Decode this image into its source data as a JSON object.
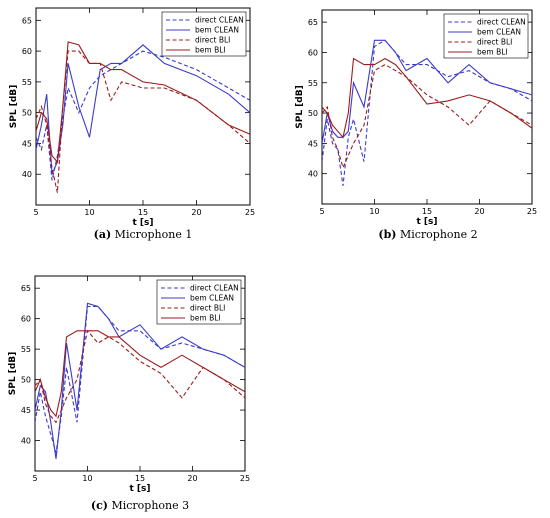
{
  "colors": {
    "blue": "#3b3bcc",
    "red": "#9b1c1c"
  },
  "chart_data": [
    {
      "type": "line",
      "caption_letter": "(a)",
      "caption_text": " Microphone 1",
      "xlabel": "t [s]",
      "ylabel": "SPL [dB]",
      "xlim": [
        5,
        25
      ],
      "ylim": [
        35,
        67
      ],
      "xticks": [
        5,
        10,
        15,
        20,
        25
      ],
      "yticks": [
        40,
        45,
        50,
        55,
        60,
        65
      ],
      "legend": "top-right",
      "series": [
        {
          "name": "direct CLEAN",
          "color": "#3b3bcc",
          "dash": true,
          "x": [
            5,
            5.5,
            6,
            6.5,
            7,
            7.5,
            8,
            9,
            10,
            11,
            12,
            13,
            15,
            17,
            20,
            23,
            25
          ],
          "y": [
            46,
            44,
            48,
            39,
            43,
            49,
            54,
            50,
            54,
            56,
            57,
            58,
            60,
            59,
            57,
            54,
            52
          ]
        },
        {
          "name": "bem CLEAN",
          "color": "#3b3bcc",
          "dash": false,
          "x": [
            5,
            5.5,
            6,
            6.5,
            7,
            7.5,
            8,
            9,
            10,
            11,
            12,
            13,
            15,
            17,
            20,
            23,
            25
          ],
          "y": [
            44,
            48,
            53,
            40,
            42,
            48,
            58,
            51,
            46,
            57,
            58,
            58,
            61,
            58,
            56,
            53,
            50
          ]
        },
        {
          "name": "direct BLI",
          "color": "#9b1c1c",
          "dash": true,
          "x": [
            5,
            5.5,
            6,
            6.5,
            7,
            7.5,
            8,
            9,
            10,
            11,
            12,
            13,
            15,
            17,
            20,
            23,
            25
          ],
          "y": [
            49,
            51,
            48,
            41,
            37,
            51,
            60,
            60,
            58,
            58,
            52,
            55,
            54,
            54,
            52,
            48,
            45
          ]
        },
        {
          "name": "bem BLI",
          "color": "#9b1c1c",
          "dash": false,
          "x": [
            5,
            5.5,
            6,
            6.5,
            7,
            7.5,
            8,
            9,
            10,
            11,
            12,
            13,
            15,
            17,
            20,
            23,
            25
          ],
          "y": [
            47,
            50,
            49,
            43,
            42,
            51,
            61.5,
            61,
            58,
            58,
            57,
            57,
            55,
            54.5,
            52,
            48,
            46.5
          ]
        }
      ]
    },
    {
      "type": "line",
      "caption_letter": "(b)",
      "caption_text": " Microphone 2",
      "xlabel": "t [s]",
      "ylabel": "SPL [dB]",
      "xlim": [
        5,
        25
      ],
      "ylim": [
        35,
        67
      ],
      "xticks": [
        5,
        10,
        15,
        20,
        25
      ],
      "yticks": [
        40,
        45,
        50,
        55,
        60,
        65
      ],
      "legend": "top-right",
      "series": [
        {
          "name": "direct CLEAN",
          "color": "#3b3bcc",
          "dash": true,
          "x": [
            5,
            5.5,
            6,
            6.5,
            7,
            7.5,
            8,
            9,
            10,
            11,
            12,
            13,
            15,
            17,
            19,
            21,
            23,
            25
          ],
          "y": [
            42,
            49,
            45,
            44,
            38,
            46,
            49,
            42,
            61,
            62,
            60,
            58,
            58,
            56,
            57,
            55,
            54,
            52
          ]
        },
        {
          "name": "bem CLEAN",
          "color": "#3b3bcc",
          "dash": false,
          "x": [
            5,
            5.5,
            6,
            6.5,
            7,
            7.5,
            8,
            9,
            10,
            11,
            12,
            13,
            15,
            17,
            19,
            21,
            23,
            25
          ],
          "y": [
            45,
            50,
            47,
            46,
            46,
            47,
            55,
            51,
            62,
            62,
            60,
            57,
            59,
            55,
            58,
            55,
            54,
            53
          ]
        },
        {
          "name": "direct BLI",
          "color": "#9b1c1c",
          "dash": true,
          "x": [
            5,
            5.5,
            6,
            6.5,
            7,
            7.5,
            8,
            9,
            10,
            11,
            12,
            13,
            15,
            17,
            19,
            21,
            23,
            25
          ],
          "y": [
            50,
            51,
            46,
            44,
            41,
            43,
            45,
            48,
            57,
            58,
            57,
            56,
            53,
            51,
            48,
            52,
            50,
            48
          ]
        },
        {
          "name": "bem BLI",
          "color": "#9b1c1c",
          "dash": false,
          "x": [
            5,
            5.5,
            6,
            6.5,
            7,
            7.5,
            8,
            9,
            10,
            11,
            12,
            13,
            15,
            17,
            19,
            21,
            23,
            25
          ],
          "y": [
            51,
            50,
            48,
            47,
            46,
            50,
            59,
            58,
            58,
            59,
            58,
            56,
            51.5,
            52,
            53,
            52,
            50,
            47.5
          ]
        }
      ]
    },
    {
      "type": "line",
      "caption_letter": "(c)",
      "caption_text": " Microphone 3",
      "xlabel": "t [s]",
      "ylabel": "SPL [dB]",
      "xlim": [
        5,
        25
      ],
      "ylim": [
        35,
        67
      ],
      "xticks": [
        5,
        10,
        15,
        20,
        25
      ],
      "yticks": [
        40,
        45,
        50,
        55,
        60,
        65
      ],
      "legend": "top-right",
      "series": [
        {
          "name": "direct CLEAN",
          "color": "#3b3bcc",
          "dash": true,
          "x": [
            5,
            5.5,
            6,
            6.5,
            7,
            7.5,
            8,
            9,
            10,
            11,
            12,
            13,
            15,
            17,
            19,
            21,
            23,
            25
          ],
          "y": [
            43,
            48,
            44,
            41,
            38,
            44,
            52,
            43,
            62,
            62,
            60,
            58,
            58,
            55,
            56,
            55,
            54,
            52
          ]
        },
        {
          "name": "bem CLEAN",
          "color": "#3b3bcc",
          "dash": false,
          "x": [
            5,
            5.5,
            6,
            6.5,
            7,
            7.5,
            8,
            9,
            10,
            11,
            12,
            13,
            15,
            17,
            19,
            21,
            23,
            25
          ],
          "y": [
            45,
            49,
            48,
            43,
            37,
            45,
            56,
            45,
            62.5,
            62,
            60,
            57,
            59,
            55,
            57,
            55,
            54,
            52
          ]
        },
        {
          "name": "direct BLI",
          "color": "#9b1c1c",
          "dash": true,
          "x": [
            5,
            5.5,
            6,
            6.5,
            7,
            7.5,
            8,
            9,
            10,
            11,
            12,
            13,
            15,
            17,
            19,
            21,
            23,
            25
          ],
          "y": [
            49,
            50,
            46,
            44,
            43,
            45,
            47,
            50,
            58,
            56,
            57,
            56,
            53,
            51,
            47,
            52,
            50,
            47
          ]
        },
        {
          "name": "bem BLI",
          "color": "#9b1c1c",
          "dash": false,
          "x": [
            5,
            5.5,
            6,
            6.5,
            7,
            7.5,
            8,
            9,
            10,
            11,
            12,
            13,
            15,
            17,
            19,
            21,
            23,
            25
          ],
          "y": [
            48,
            50,
            47,
            45,
            44,
            48,
            57,
            58,
            58,
            58,
            57,
            57,
            54,
            52,
            54,
            52,
            50,
            48
          ]
        }
      ]
    }
  ]
}
